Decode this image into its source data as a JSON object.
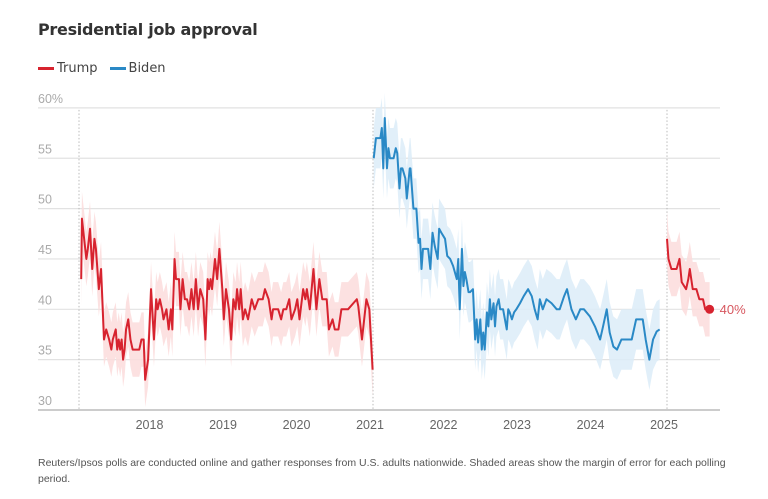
{
  "chart_data": {
    "type": "line",
    "title": "Presidential job approval",
    "ylim": [
      30,
      60
    ],
    "yticks": [
      "60%",
      "55",
      "50",
      "45",
      "40",
      "35",
      "30"
    ],
    "ytick_values": [
      60,
      55,
      50,
      45,
      40,
      35,
      30
    ],
    "xticks": [
      "2018",
      "2019",
      "2020",
      "2021",
      "2022",
      "2023",
      "2024",
      "2025"
    ],
    "xtick_values": [
      2018,
      2019,
      2020,
      2021,
      2022,
      2023,
      2024,
      2025
    ],
    "xlim": [
      2016.95,
      2025.95
    ],
    "grid": true,
    "legend_placement": "top-left",
    "inauguration_markers": [
      2017.0,
      2021.0,
      2025.0
    ],
    "end_label": "40%",
    "legend": [
      {
        "name": "Trump",
        "color": "#d7232f"
      },
      {
        "name": "Biden",
        "color": "#2a89c6"
      }
    ],
    "series": [
      {
        "name": "Trump",
        "color": "#d7232f",
        "band_color": "#fbdcdc",
        "moe": 2.7,
        "points": [
          [
            2017.03,
            43
          ],
          [
            2017.04,
            49
          ],
          [
            2017.07,
            47
          ],
          [
            2017.1,
            45
          ],
          [
            2017.12,
            46
          ],
          [
            2017.15,
            48
          ],
          [
            2017.18,
            44
          ],
          [
            2017.21,
            47
          ],
          [
            2017.23,
            46
          ],
          [
            2017.27,
            42
          ],
          [
            2017.3,
            44
          ],
          [
            2017.34,
            37
          ],
          [
            2017.37,
            38
          ],
          [
            2017.41,
            37
          ],
          [
            2017.44,
            36
          ],
          [
            2017.46,
            37
          ],
          [
            2017.5,
            38
          ],
          [
            2017.52,
            36
          ],
          [
            2017.54,
            37
          ],
          [
            2017.56,
            36
          ],
          [
            2017.58,
            37
          ],
          [
            2017.6,
            35
          ],
          [
            2017.62,
            36
          ],
          [
            2017.64,
            38
          ],
          [
            2017.67,
            39
          ],
          [
            2017.7,
            37
          ],
          [
            2017.73,
            36
          ],
          [
            2017.78,
            36
          ],
          [
            2017.82,
            36
          ],
          [
            2017.85,
            37
          ],
          [
            2017.88,
            37
          ],
          [
            2017.9,
            33
          ],
          [
            2017.94,
            35
          ],
          [
            2017.98,
            42
          ],
          [
            2018.02,
            37
          ],
          [
            2018.05,
            41
          ],
          [
            2018.07,
            40
          ],
          [
            2018.1,
            41
          ],
          [
            2018.13,
            40
          ],
          [
            2018.15,
            39
          ],
          [
            2018.19,
            40
          ],
          [
            2018.22,
            38
          ],
          [
            2018.25,
            40
          ],
          [
            2018.27,
            38
          ],
          [
            2018.3,
            45
          ],
          [
            2018.32,
            43
          ],
          [
            2018.36,
            43
          ],
          [
            2018.38,
            40
          ],
          [
            2018.41,
            43
          ],
          [
            2018.44,
            41
          ],
          [
            2018.47,
            41
          ],
          [
            2018.5,
            40
          ],
          [
            2018.53,
            42
          ],
          [
            2018.56,
            40
          ],
          [
            2018.59,
            43
          ],
          [
            2018.62,
            40
          ],
          [
            2018.65,
            42
          ],
          [
            2018.69,
            41
          ],
          [
            2018.72,
            37
          ],
          [
            2018.75,
            43
          ],
          [
            2018.77,
            42
          ],
          [
            2018.79,
            43
          ],
          [
            2018.81,
            42
          ],
          [
            2018.85,
            45
          ],
          [
            2018.88,
            43
          ],
          [
            2018.91,
            46
          ],
          [
            2018.95,
            42
          ],
          [
            2018.97,
            39
          ],
          [
            2019.0,
            42
          ],
          [
            2019.04,
            40
          ],
          [
            2019.07,
            37
          ],
          [
            2019.1,
            41
          ],
          [
            2019.13,
            40
          ],
          [
            2019.15,
            42
          ],
          [
            2019.18,
            40
          ],
          [
            2019.2,
            42
          ],
          [
            2019.23,
            39
          ],
          [
            2019.26,
            40
          ],
          [
            2019.3,
            39
          ],
          [
            2019.35,
            41
          ],
          [
            2019.39,
            40
          ],
          [
            2019.44,
            41
          ],
          [
            2019.5,
            41
          ],
          [
            2019.53,
            42
          ],
          [
            2019.58,
            41
          ],
          [
            2019.62,
            39
          ],
          [
            2019.64,
            40
          ],
          [
            2019.71,
            40
          ],
          [
            2019.75,
            39
          ],
          [
            2019.78,
            40
          ],
          [
            2019.82,
            40
          ],
          [
            2019.86,
            41
          ],
          [
            2019.89,
            39
          ],
          [
            2019.94,
            40
          ],
          [
            2019.97,
            41
          ],
          [
            2020.0,
            39
          ],
          [
            2020.05,
            42
          ],
          [
            2020.08,
            41
          ],
          [
            2020.1,
            42
          ],
          [
            2020.14,
            40
          ],
          [
            2020.19,
            44
          ],
          [
            2020.23,
            40
          ],
          [
            2020.27,
            43
          ],
          [
            2020.31,
            41
          ],
          [
            2020.37,
            41
          ],
          [
            2020.4,
            38
          ],
          [
            2020.45,
            39
          ],
          [
            2020.48,
            38
          ],
          [
            2020.53,
            38
          ],
          [
            2020.57,
            40
          ],
          [
            2020.66,
            40
          ],
          [
            2020.78,
            41
          ],
          [
            2020.8,
            40.3
          ],
          [
            2020.85,
            37
          ],
          [
            2020.91,
            41
          ],
          [
            2020.95,
            40
          ],
          [
            2020.995,
            34
          ]
        ]
      },
      {
        "name": "Biden",
        "color": "#2a89c6",
        "band_color": "#dcecf8",
        "moe": 3.0,
        "points": [
          [
            2021.01,
            55
          ],
          [
            2021.04,
            57
          ],
          [
            2021.1,
            57
          ],
          [
            2021.12,
            58
          ],
          [
            2021.14,
            54
          ],
          [
            2021.16,
            59
          ],
          [
            2021.19,
            54
          ],
          [
            2021.21,
            56
          ],
          [
            2021.23,
            55
          ],
          [
            2021.28,
            55
          ],
          [
            2021.31,
            56
          ],
          [
            2021.33,
            55.5
          ],
          [
            2021.36,
            52
          ],
          [
            2021.38,
            54
          ],
          [
            2021.4,
            54
          ],
          [
            2021.44,
            53
          ],
          [
            2021.46,
            51
          ],
          [
            2021.5,
            54
          ],
          [
            2021.51,
            54
          ],
          [
            2021.55,
            50
          ],
          [
            2021.59,
            50
          ],
          [
            2021.62,
            46.6
          ],
          [
            2021.64,
            47
          ],
          [
            2021.66,
            44
          ],
          [
            2021.68,
            46
          ],
          [
            2021.73,
            46
          ],
          [
            2021.75,
            46
          ],
          [
            2021.78,
            44
          ],
          [
            2021.81,
            47.6
          ],
          [
            2021.84,
            46.3
          ],
          [
            2021.88,
            45
          ],
          [
            2021.9,
            48
          ],
          [
            2021.93,
            47.6
          ],
          [
            2021.98,
            47
          ],
          [
            2022.01,
            45.3
          ],
          [
            2022.05,
            45
          ],
          [
            2022.09,
            44.3
          ],
          [
            2022.14,
            43
          ],
          [
            2022.16,
            45
          ],
          [
            2022.18,
            40
          ],
          [
            2022.21,
            46
          ],
          [
            2022.23,
            42.3
          ],
          [
            2022.25,
            43.7
          ],
          [
            2022.27,
            43
          ],
          [
            2022.3,
            41.7
          ],
          [
            2022.32,
            41.7
          ],
          [
            2022.36,
            42
          ],
          [
            2022.39,
            37
          ],
          [
            2022.41,
            39
          ],
          [
            2022.43,
            36.7
          ],
          [
            2022.46,
            39
          ],
          [
            2022.48,
            36
          ],
          [
            2022.5,
            37.7
          ],
          [
            2022.52,
            36
          ],
          [
            2022.55,
            39.7
          ],
          [
            2022.57,
            38.3
          ],
          [
            2022.59,
            41
          ],
          [
            2022.61,
            39
          ],
          [
            2022.64,
            40.6
          ],
          [
            2022.66,
            38.3
          ],
          [
            2022.68,
            40.3
          ],
          [
            2022.71,
            41
          ],
          [
            2022.73,
            40
          ],
          [
            2022.77,
            40
          ],
          [
            2022.82,
            38
          ],
          [
            2022.84,
            40
          ],
          [
            2022.86,
            39.7
          ],
          [
            2022.89,
            39
          ],
          [
            2022.92,
            39.7
          ],
          [
            2022.95,
            40
          ],
          [
            2023.0,
            40.6
          ],
          [
            2023.05,
            41.3
          ],
          [
            2023.11,
            42
          ],
          [
            2023.16,
            41.3
          ],
          [
            2023.2,
            40
          ],
          [
            2023.24,
            39
          ],
          [
            2023.27,
            41
          ],
          [
            2023.31,
            40
          ],
          [
            2023.36,
            41
          ],
          [
            2023.43,
            40.6
          ],
          [
            2023.5,
            40
          ],
          [
            2023.54,
            40
          ],
          [
            2023.6,
            41.3
          ],
          [
            2023.64,
            42
          ],
          [
            2023.7,
            40
          ],
          [
            2023.76,
            39
          ],
          [
            2023.82,
            40
          ],
          [
            2023.87,
            40
          ],
          [
            2023.95,
            39.3
          ],
          [
            2024.02,
            38.3
          ],
          [
            2024.09,
            37
          ],
          [
            2024.13,
            38.3
          ],
          [
            2024.18,
            40
          ],
          [
            2024.22,
            37.7
          ],
          [
            2024.27,
            36.3
          ],
          [
            2024.32,
            36
          ],
          [
            2024.38,
            37
          ],
          [
            2024.45,
            37
          ],
          [
            2024.52,
            37
          ],
          [
            2024.58,
            39
          ],
          [
            2024.67,
            39
          ],
          [
            2024.71,
            37
          ],
          [
            2024.76,
            35
          ],
          [
            2024.81,
            37
          ],
          [
            2024.86,
            37.8
          ],
          [
            2024.9,
            38
          ]
        ]
      },
      {
        "name": "Trump",
        "color": "#d7232f",
        "band_color": "#fbdcdc",
        "moe": 2.7,
        "points": [
          [
            2025.0,
            47
          ],
          [
            2025.02,
            45
          ],
          [
            2025.06,
            44
          ],
          [
            2025.13,
            44
          ],
          [
            2025.17,
            45
          ],
          [
            2025.2,
            42.7
          ],
          [
            2025.26,
            42
          ],
          [
            2025.29,
            43
          ],
          [
            2025.31,
            44
          ],
          [
            2025.35,
            42
          ],
          [
            2025.4,
            42
          ],
          [
            2025.44,
            41
          ],
          [
            2025.49,
            41
          ],
          [
            2025.52,
            40
          ],
          [
            2025.58,
            40
          ]
        ]
      }
    ]
  },
  "footnote": "Reuters/Ipsos polls are conducted online and gather responses from U.S. adults nationwide. Shaded areas show the margin of error for each polling period."
}
